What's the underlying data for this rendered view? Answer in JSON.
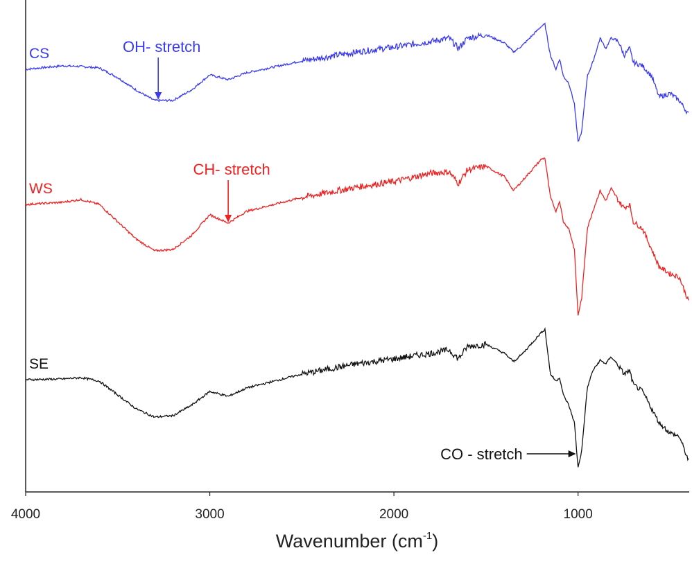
{
  "chart_data": {
    "type": "line",
    "title": "",
    "xlabel": "Wavenumber (cm",
    "xlabel_sup": "-1",
    "xlabel_close": ")",
    "ylabel": "",
    "xlim": [
      4000,
      400
    ],
    "ylim": [
      0,
      71
    ],
    "x_reversed": true,
    "grid": false,
    "x_ticks": [
      4000,
      3000,
      2000,
      1000
    ],
    "x_tick_labels": [
      "4000",
      "3000",
      "2000",
      "1000"
    ],
    "x": [
      4000,
      3800,
      3700,
      3600,
      3500,
      3400,
      3300,
      3200,
      3100,
      3000,
      2900,
      2800,
      2500,
      2200,
      2000,
      1800,
      1700,
      1650,
      1600,
      1500,
      1400,
      1350,
      1300,
      1200,
      1180,
      1150,
      1120,
      1100,
      1080,
      1050,
      1020,
      1000,
      980,
      950,
      920,
      880,
      850,
      820,
      780,
      750,
      720,
      700,
      650,
      600,
      560,
      500,
      450,
      400
    ],
    "series": [
      {
        "name": "CS",
        "color": "#3a3af0",
        "values": [
          61,
          61.5,
          61.4,
          61.2,
          59.8,
          58,
          56.5,
          56.5,
          58,
          60.2,
          59.5,
          60.5,
          62.2,
          63.5,
          64.2,
          65,
          65.5,
          64,
          65.5,
          66,
          64.8,
          63.5,
          64.5,
          67.2,
          67.5,
          63,
          61,
          62.5,
          60,
          59,
          56,
          50.5,
          52,
          60,
          62,
          65.5,
          64,
          65.5,
          65,
          63,
          64,
          62,
          61.5,
          60,
          57,
          57.5,
          56.5,
          54.5
        ]
      },
      {
        "name": "WS",
        "color": "#ee2222",
        "values": [
          41.5,
          41.8,
          42.2,
          41.5,
          39,
          36.5,
          34.8,
          35,
          37,
          40,
          38.8,
          40.5,
          42.5,
          44,
          44.8,
          46,
          46.2,
          44.5,
          46.5,
          47,
          45.5,
          43.5,
          45,
          48,
          48.2,
          42.5,
          40.5,
          42,
          39,
          38,
          35,
          25.5,
          28,
          38,
          40.5,
          43.5,
          42,
          43.8,
          42,
          41,
          41.5,
          39,
          38,
          35,
          32.5,
          31.5,
          31,
          27.5
        ]
      },
      {
        "name": "SE",
        "color": "#111111",
        "values": [
          16.2,
          16.3,
          16.5,
          16,
          14,
          12,
          10.8,
          11,
          12.5,
          14.5,
          13.8,
          15,
          17,
          18.5,
          19.2,
          20,
          20.5,
          19.2,
          21,
          21.3,
          20,
          18.8,
          20,
          23,
          23.5,
          17,
          16,
          16.5,
          14,
          12.5,
          10,
          3.5,
          6,
          15,
          17.5,
          19,
          18.5,
          19.5,
          18.2,
          17,
          17.5,
          15.5,
          14.5,
          12,
          10,
          8.5,
          8,
          4.5
        ]
      }
    ],
    "annotations": [
      {
        "text": "OH- stretch",
        "series": "CS",
        "x": 3280,
        "color": "#3a3af0",
        "arrow": "down"
      },
      {
        "text": "CH- stretch",
        "series": "WS",
        "x": 2900,
        "color": "#ee2222",
        "arrow": "down"
      },
      {
        "text": "CO - stretch",
        "series": "SE",
        "x": 1000,
        "color": "#111111",
        "arrow": "right"
      }
    ]
  }
}
